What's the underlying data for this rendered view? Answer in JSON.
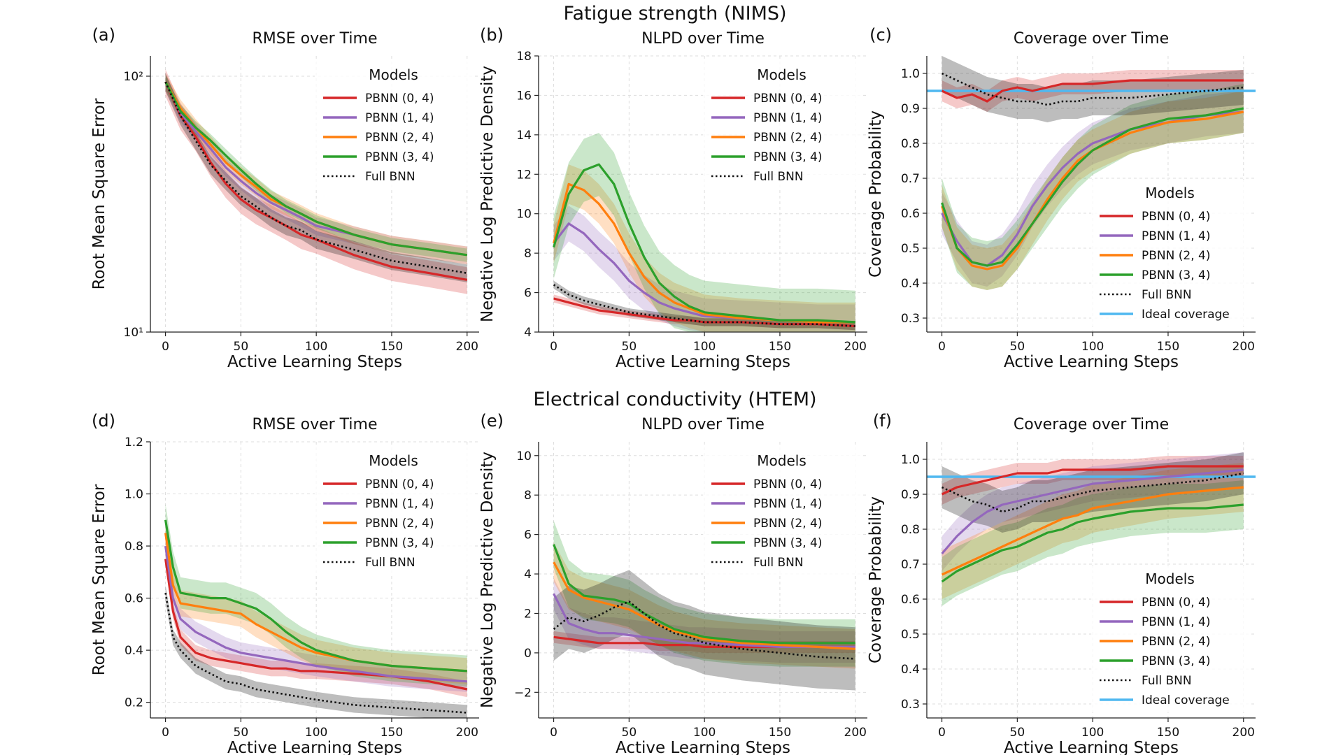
{
  "figure": {
    "row_titles": [
      "Fatigue strength (NIMS)",
      "Electrical conductivity (HTEM)"
    ]
  },
  "legend": {
    "title": "Models",
    "entries": [
      "PBNN (0, 4)",
      "PBNN (1, 4)",
      "PBNN (2, 4)",
      "PBNN (3, 4)",
      "Full BNN"
    ],
    "ideal_label": "Ideal coverage"
  },
  "colors": {
    "pbnn04": "#d62728",
    "pbnn14": "#9467bd",
    "pbnn24": "#ff7f0e",
    "pbnn34": "#2ca02c",
    "full": "#111111",
    "ideal": "#4fb8f0"
  },
  "chart_data": [
    {
      "id": "a",
      "panel_label": "(a)",
      "type": "line",
      "title": "RMSE over Time",
      "xlabel": "Active Learning Steps",
      "ylabel": "Root Mean Square Error",
      "yscale": "log",
      "xlim": [
        -10,
        208
      ],
      "ylim": [
        10,
        120
      ],
      "xticks": [
        0,
        50,
        100,
        150,
        200
      ],
      "xtick_labels": [
        "0",
        "50",
        "100",
        "150",
        "200"
      ],
      "yticks": [
        10,
        100
      ],
      "ytick_labels": [
        "10¹",
        "10²"
      ],
      "legend_loc": "upper right",
      "x": [
        0,
        10,
        20,
        30,
        40,
        50,
        60,
        70,
        80,
        90,
        100,
        125,
        150,
        175,
        200
      ],
      "series": [
        {
          "name": "PBNN (0, 4)",
          "color_key": "pbnn04",
          "values": [
            95,
            70,
            58,
            46,
            38,
            33,
            30,
            28,
            26,
            24,
            23,
            20,
            18,
            17,
            16
          ],
          "band": 0.12
        },
        {
          "name": "PBNN (1, 4)",
          "color_key": "pbnn14",
          "values": [
            95,
            72,
            61,
            52,
            44,
            39,
            35,
            32,
            30,
            28,
            26,
            24,
            22,
            21,
            20
          ],
          "band": 0.08
        },
        {
          "name": "PBNN (2, 4)",
          "color_key": "pbnn24",
          "values": [
            95,
            75,
            63,
            54,
            46,
            41,
            37,
            33,
            31,
            29,
            27,
            24,
            22,
            21,
            20
          ],
          "band": 0.08
        },
        {
          "name": "PBNN (3, 4)",
          "color_key": "pbnn34",
          "values": [
            95,
            73,
            63,
            56,
            49,
            43,
            38,
            34,
            31,
            29,
            27,
            24,
            22,
            21,
            20
          ],
          "band": 0.06
        },
        {
          "name": "Full BNN",
          "color_key": "full",
          "dashed": true,
          "values": [
            95,
            70,
            56,
            45,
            39,
            34,
            31,
            28,
            26,
            25,
            23,
            21,
            19,
            18,
            17
          ],
          "band": 0.08
        }
      ]
    },
    {
      "id": "b",
      "panel_label": "(b)",
      "type": "line",
      "title": "NLPD over Time",
      "xlabel": "Active Learning Steps",
      "ylabel": "Negative Log Predictive Density",
      "yscale": "linear",
      "xlim": [
        -10,
        208
      ],
      "ylim": [
        4,
        18
      ],
      "xticks": [
        0,
        50,
        100,
        150,
        200
      ],
      "xtick_labels": [
        "0",
        "50",
        "100",
        "150",
        "200"
      ],
      "yticks": [
        4,
        6,
        8,
        10,
        12,
        14,
        16,
        18
      ],
      "ytick_labels": [
        "4",
        "6",
        "8",
        "10",
        "12",
        "14",
        "16",
        "18"
      ],
      "legend_loc": "upper right",
      "x": [
        0,
        10,
        20,
        30,
        40,
        50,
        60,
        70,
        80,
        90,
        100,
        125,
        150,
        175,
        200
      ],
      "series": [
        {
          "name": "PBNN (0, 4)",
          "color_key": "pbnn04",
          "values": [
            5.7,
            5.5,
            5.3,
            5.1,
            5.0,
            4.9,
            4.8,
            4.7,
            4.6,
            4.6,
            4.5,
            4.5,
            4.4,
            4.4,
            4.3
          ],
          "band": 0.2
        },
        {
          "name": "PBNN (1, 4)",
          "color_key": "pbnn14",
          "values": [
            8.5,
            9.5,
            9.0,
            8.2,
            7.5,
            6.6,
            6.0,
            5.5,
            5.2,
            5.0,
            4.8,
            4.7,
            4.6,
            4.5,
            4.5
          ],
          "band": 0.9
        },
        {
          "name": "PBNN (2, 4)",
          "color_key": "pbnn24",
          "values": [
            8.5,
            11.5,
            11.2,
            10.5,
            9.5,
            8.0,
            6.8,
            6.0,
            5.5,
            5.2,
            4.9,
            4.7,
            4.6,
            4.5,
            4.5
          ],
          "band": 1.0
        },
        {
          "name": "PBNN (3, 4)",
          "color_key": "pbnn34",
          "values": [
            8.3,
            11.0,
            12.2,
            12.5,
            11.5,
            9.5,
            7.8,
            6.5,
            5.8,
            5.3,
            5.0,
            4.8,
            4.6,
            4.6,
            4.5
          ],
          "band": 1.6
        },
        {
          "name": "Full BNN",
          "color_key": "full",
          "dashed": true,
          "values": [
            6.4,
            5.9,
            5.6,
            5.4,
            5.2,
            5.0,
            4.9,
            4.8,
            4.7,
            4.6,
            4.5,
            4.5,
            4.4,
            4.4,
            4.3
          ],
          "band": 0.2
        }
      ]
    },
    {
      "id": "c",
      "panel_label": "(c)",
      "type": "line",
      "title": "Coverage over Time",
      "xlabel": "Active Learning Steps",
      "ylabel": "Coverage Probability",
      "yscale": "linear",
      "xlim": [
        -10,
        208
      ],
      "ylim": [
        0.26,
        1.05
      ],
      "xticks": [
        0,
        50,
        100,
        150,
        200
      ],
      "xtick_labels": [
        "0",
        "50",
        "100",
        "150",
        "200"
      ],
      "yticks": [
        0.3,
        0.4,
        0.5,
        0.6,
        0.7,
        0.8,
        0.9,
        1.0
      ],
      "ytick_labels": [
        "0.3",
        "0.4",
        "0.5",
        "0.6",
        "0.7",
        "0.8",
        "0.9",
        "1.0"
      ],
      "legend_loc": "lower right",
      "ideal_coverage": 0.95,
      "x": [
        0,
        10,
        20,
        30,
        40,
        50,
        60,
        70,
        80,
        90,
        100,
        125,
        150,
        175,
        200
      ],
      "series": [
        {
          "name": "PBNN (0, 4)",
          "color_key": "pbnn04",
          "values": [
            0.95,
            0.93,
            0.94,
            0.92,
            0.95,
            0.96,
            0.95,
            0.96,
            0.97,
            0.97,
            0.97,
            0.98,
            0.98,
            0.98,
            0.98
          ],
          "band": 0.03
        },
        {
          "name": "PBNN (1, 4)",
          "color_key": "pbnn14",
          "values": [
            0.6,
            0.52,
            0.46,
            0.45,
            0.48,
            0.54,
            0.62,
            0.68,
            0.73,
            0.77,
            0.8,
            0.84,
            0.86,
            0.88,
            0.89
          ],
          "band": 0.06
        },
        {
          "name": "PBNN (2, 4)",
          "color_key": "pbnn24",
          "values": [
            0.62,
            0.5,
            0.45,
            0.44,
            0.45,
            0.5,
            0.57,
            0.64,
            0.7,
            0.75,
            0.78,
            0.83,
            0.86,
            0.87,
            0.89
          ],
          "band": 0.06
        },
        {
          "name": "PBNN (3, 4)",
          "color_key": "pbnn34",
          "values": [
            0.63,
            0.5,
            0.46,
            0.45,
            0.46,
            0.51,
            0.57,
            0.63,
            0.69,
            0.74,
            0.78,
            0.84,
            0.87,
            0.88,
            0.9
          ],
          "band": 0.07
        },
        {
          "name": "Full BNN",
          "color_key": "full",
          "dashed": true,
          "values": [
            1.0,
            0.98,
            0.96,
            0.94,
            0.93,
            0.92,
            0.92,
            0.91,
            0.92,
            0.92,
            0.93,
            0.93,
            0.94,
            0.95,
            0.96
          ],
          "band": 0.05
        }
      ]
    },
    {
      "id": "d",
      "panel_label": "(d)",
      "type": "line",
      "title": "RMSE over Time",
      "xlabel": "Active Learning Steps",
      "ylabel": "Root Mean Square Error",
      "yscale": "linear",
      "xlim": [
        -10,
        208
      ],
      "ylim": [
        0.14,
        1.2
      ],
      "xticks": [
        0,
        50,
        100,
        150,
        200
      ],
      "xtick_labels": [
        "0",
        "50",
        "100",
        "150",
        "200"
      ],
      "yticks": [
        0.2,
        0.4,
        0.6,
        0.8,
        1.0,
        1.2
      ],
      "ytick_labels": [
        "0.2",
        "0.4",
        "0.6",
        "0.8",
        "1.0",
        "1.2"
      ],
      "legend_loc": "upper right",
      "x": [
        0,
        5,
        10,
        20,
        30,
        40,
        50,
        60,
        70,
        80,
        90,
        100,
        125,
        150,
        175,
        200
      ],
      "series": [
        {
          "name": "PBNN (0, 4)",
          "color_key": "pbnn04",
          "values": [
            0.75,
            0.55,
            0.45,
            0.39,
            0.37,
            0.36,
            0.35,
            0.34,
            0.33,
            0.33,
            0.32,
            0.32,
            0.31,
            0.3,
            0.28,
            0.25
          ],
          "band": 0.03
        },
        {
          "name": "PBNN (1, 4)",
          "color_key": "pbnn14",
          "values": [
            0.8,
            0.6,
            0.52,
            0.47,
            0.44,
            0.41,
            0.39,
            0.38,
            0.37,
            0.36,
            0.35,
            0.34,
            0.32,
            0.3,
            0.29,
            0.28
          ],
          "band": 0.04
        },
        {
          "name": "PBNN (2, 4)",
          "color_key": "pbnn24",
          "values": [
            0.85,
            0.65,
            0.58,
            0.57,
            0.56,
            0.55,
            0.54,
            0.5,
            0.47,
            0.44,
            0.41,
            0.39,
            0.36,
            0.34,
            0.33,
            0.32
          ],
          "band": 0.05
        },
        {
          "name": "PBNN (3, 4)",
          "color_key": "pbnn34",
          "values": [
            0.9,
            0.72,
            0.62,
            0.61,
            0.6,
            0.6,
            0.58,
            0.56,
            0.52,
            0.47,
            0.43,
            0.4,
            0.36,
            0.34,
            0.33,
            0.32
          ],
          "band": 0.06
        },
        {
          "name": "Full BNN",
          "color_key": "full",
          "dashed": true,
          "values": [
            0.62,
            0.45,
            0.4,
            0.34,
            0.31,
            0.28,
            0.27,
            0.25,
            0.24,
            0.23,
            0.22,
            0.21,
            0.19,
            0.18,
            0.17,
            0.16
          ],
          "band": 0.03
        }
      ]
    },
    {
      "id": "e",
      "panel_label": "(e)",
      "type": "line",
      "title": "NLPD over Time",
      "xlabel": "Active Learning Steps",
      "ylabel": "Negative Log Predictive Density",
      "yscale": "linear",
      "xlim": [
        -10,
        208
      ],
      "ylim": [
        -3.3,
        10.7
      ],
      "xticks": [
        0,
        50,
        100,
        150,
        200
      ],
      "xtick_labels": [
        "0",
        "50",
        "100",
        "150",
        "200"
      ],
      "yticks": [
        -2,
        0,
        2,
        4,
        6,
        8,
        10
      ],
      "ytick_labels": [
        "−2",
        "0",
        "2",
        "4",
        "6",
        "8",
        "10"
      ],
      "legend_loc": "upper right",
      "x": [
        0,
        10,
        20,
        30,
        40,
        50,
        60,
        70,
        80,
        90,
        100,
        125,
        150,
        175,
        200
      ],
      "series": [
        {
          "name": "PBNN (0, 4)",
          "color_key": "pbnn04",
          "values": [
            0.8,
            0.7,
            0.6,
            0.5,
            0.5,
            0.5,
            0.5,
            0.4,
            0.4,
            0.4,
            0.3,
            0.3,
            0.3,
            0.3,
            0.3
          ],
          "band": 0.3
        },
        {
          "name": "PBNN (1, 4)",
          "color_key": "pbnn14",
          "values": [
            3.0,
            1.5,
            1.2,
            1.0,
            1.0,
            0.9,
            0.8,
            0.7,
            0.6,
            0.5,
            0.5,
            0.4,
            0.3,
            0.3,
            0.3
          ],
          "band": 0.8
        },
        {
          "name": "PBNN (2, 4)",
          "color_key": "pbnn24",
          "values": [
            4.6,
            3.2,
            2.8,
            2.6,
            2.4,
            2.2,
            1.8,
            1.4,
            1.1,
            0.9,
            0.7,
            0.5,
            0.4,
            0.3,
            0.2
          ],
          "band": 1.0
        },
        {
          "name": "PBNN (3, 4)",
          "color_key": "pbnn34",
          "values": [
            5.5,
            3.5,
            2.9,
            2.8,
            2.7,
            2.5,
            2.0,
            1.6,
            1.2,
            1.0,
            0.8,
            0.6,
            0.5,
            0.5,
            0.5
          ],
          "band": 1.2
        },
        {
          "name": "Full BNN",
          "color_key": "full",
          "dashed": true,
          "values": [
            1.2,
            1.8,
            1.6,
            1.9,
            2.3,
            2.6,
            2.0,
            1.4,
            1.0,
            0.8,
            0.5,
            0.2,
            0.0,
            -0.2,
            -0.3
          ],
          "band": 1.6
        }
      ]
    },
    {
      "id": "f",
      "panel_label": "(f)",
      "type": "line",
      "title": "Coverage over Time",
      "xlabel": "Active Learning Steps",
      "ylabel": "Coverage Probability",
      "yscale": "linear",
      "xlim": [
        -10,
        208
      ],
      "ylim": [
        0.26,
        1.05
      ],
      "xticks": [
        0,
        50,
        100,
        150,
        200
      ],
      "xtick_labels": [
        "0",
        "50",
        "100",
        "150",
        "200"
      ],
      "yticks": [
        0.3,
        0.4,
        0.5,
        0.6,
        0.7,
        0.8,
        0.9,
        1.0
      ],
      "ytick_labels": [
        "0.3",
        "0.4",
        "0.5",
        "0.6",
        "0.7",
        "0.8",
        "0.9",
        "1.0"
      ],
      "legend_loc": "lower right",
      "ideal_coverage": 0.95,
      "x": [
        0,
        10,
        20,
        30,
        40,
        50,
        60,
        70,
        80,
        90,
        100,
        125,
        150,
        175,
        200
      ],
      "series": [
        {
          "name": "PBNN (0, 4)",
          "color_key": "pbnn04",
          "values": [
            0.9,
            0.92,
            0.93,
            0.94,
            0.95,
            0.96,
            0.96,
            0.96,
            0.97,
            0.97,
            0.97,
            0.97,
            0.98,
            0.98,
            0.98
          ],
          "band": 0.03
        },
        {
          "name": "PBNN (1, 4)",
          "color_key": "pbnn14",
          "values": [
            0.73,
            0.78,
            0.82,
            0.85,
            0.87,
            0.88,
            0.89,
            0.9,
            0.91,
            0.92,
            0.93,
            0.94,
            0.95,
            0.96,
            0.97
          ],
          "band": 0.05
        },
        {
          "name": "PBNN (2, 4)",
          "color_key": "pbnn24",
          "values": [
            0.67,
            0.69,
            0.71,
            0.73,
            0.75,
            0.77,
            0.79,
            0.81,
            0.83,
            0.84,
            0.86,
            0.88,
            0.9,
            0.91,
            0.92
          ],
          "band": 0.07
        },
        {
          "name": "PBNN (3, 4)",
          "color_key": "pbnn34",
          "values": [
            0.65,
            0.68,
            0.7,
            0.72,
            0.74,
            0.75,
            0.77,
            0.79,
            0.8,
            0.82,
            0.83,
            0.85,
            0.86,
            0.86,
            0.87
          ],
          "band": 0.07
        },
        {
          "name": "Full BNN",
          "color_key": "full",
          "dashed": true,
          "values": [
            0.92,
            0.9,
            0.88,
            0.87,
            0.85,
            0.86,
            0.88,
            0.88,
            0.89,
            0.9,
            0.91,
            0.92,
            0.93,
            0.94,
            0.96
          ],
          "band": 0.06
        }
      ]
    }
  ]
}
